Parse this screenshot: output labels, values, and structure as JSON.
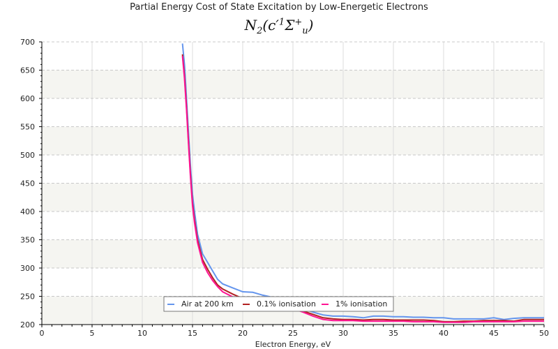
{
  "chart_data": {
    "type": "line",
    "title": "Partial Energy Cost of State Excitation by Low-Energetic Electrons",
    "subtitle": {
      "base": "N",
      "base_sub": "2",
      "open": "(",
      "state": "c′",
      "mult": "1",
      "sym": "Σ",
      "sym_sup": "+",
      "sym_sub": "u",
      "close": ")"
    },
    "xlabel": "Electron Energy, eV",
    "ylabel": "",
    "xlim": [
      0,
      50
    ],
    "ylim": [
      200,
      700
    ],
    "xticks": [
      0,
      5,
      10,
      15,
      20,
      25,
      30,
      35,
      40,
      45,
      50
    ],
    "yticks": [
      200,
      250,
      300,
      350,
      400,
      450,
      500,
      550,
      600,
      650,
      700
    ],
    "grid": true,
    "legend_position": "bottom-center",
    "series": [
      {
        "name": "Air at 200 km",
        "color": "#6495ed",
        "x": [
          14.0,
          14.2,
          14.4,
          14.6,
          14.8,
          15.0,
          15.2,
          15.5,
          16.0,
          16.5,
          17.0,
          17.5,
          18.0,
          19.0,
          20.0,
          21.0,
          22.0,
          23.0,
          24.0,
          25.0,
          26.0,
          27.0,
          28.0,
          29.0,
          30.0,
          31.0,
          32.0,
          33.0,
          34.0,
          35.0,
          36.0,
          37.0,
          38.0,
          39.0,
          40.0,
          41.0,
          42.0,
          43.0,
          44.0,
          45.0,
          46.0,
          47.0,
          48.0,
          49.0,
          50.0
        ],
        "y": [
          697,
          660,
          600,
          540,
          480,
          430,
          400,
          360,
          325,
          310,
          295,
          280,
          272,
          265,
          258,
          257,
          252,
          248,
          242,
          236,
          228,
          222,
          217,
          215,
          215,
          214,
          212,
          215,
          215,
          214,
          214,
          213,
          213,
          212,
          212,
          210,
          210,
          210,
          210,
          212,
          209,
          211,
          212,
          212,
          212
        ]
      },
      {
        "name": "0.1% ionisation",
        "color": "#b22222",
        "x": [
          14.0,
          14.2,
          14.4,
          14.6,
          14.8,
          15.0,
          15.2,
          15.5,
          16.0,
          16.5,
          17.0,
          17.5,
          18.0,
          19.0,
          20.0,
          21.0,
          22.0,
          23.0,
          24.0,
          25.0,
          26.0,
          27.0,
          28.0,
          29.0,
          30.0,
          31.0,
          32.0,
          33.0,
          34.0,
          35.0,
          36.0,
          37.0,
          38.0,
          39.0,
          40.0,
          41.0,
          42.0,
          43.0,
          44.0,
          45.0,
          46.0,
          47.0,
          48.0,
          49.0,
          50.0
        ],
        "y": [
          678,
          640,
          585,
          525,
          465,
          415,
          385,
          350,
          315,
          298,
          283,
          270,
          263,
          254,
          246,
          241,
          238,
          235,
          232,
          229,
          224,
          218,
          212,
          210,
          209,
          209,
          208,
          209,
          209,
          208,
          208,
          208,
          208,
          207,
          205,
          205,
          206,
          206,
          207,
          207,
          207,
          206,
          209,
          209,
          209
        ]
      },
      {
        "name": "1% ionisation",
        "color": "#ff1493",
        "x": [
          14.0,
          14.2,
          14.4,
          14.6,
          14.8,
          15.0,
          15.2,
          15.5,
          16.0,
          16.5,
          17.0,
          17.5,
          18.0,
          19.0,
          20.0,
          21.0,
          22.0,
          23.0,
          24.0,
          25.0,
          26.0,
          27.0,
          28.0,
          29.0,
          30.0,
          31.0,
          32.0,
          33.0,
          34.0,
          35.0,
          36.0,
          37.0,
          38.0,
          39.0,
          40.0,
          41.0,
          42.0,
          43.0,
          44.0,
          45.0,
          46.0,
          47.0,
          48.0,
          49.0,
          50.0
        ],
        "y": [
          675,
          635,
          580,
          520,
          460,
          410,
          380,
          345,
          310,
          292,
          278,
          267,
          258,
          249,
          242,
          238,
          236,
          234,
          231,
          228,
          222,
          215,
          209,
          207,
          207,
          207,
          206,
          206,
          206,
          206,
          206,
          205,
          205,
          205,
          204,
          204,
          204,
          205,
          205,
          205,
          205,
          205,
          206,
          206,
          206
        ]
      }
    ]
  }
}
